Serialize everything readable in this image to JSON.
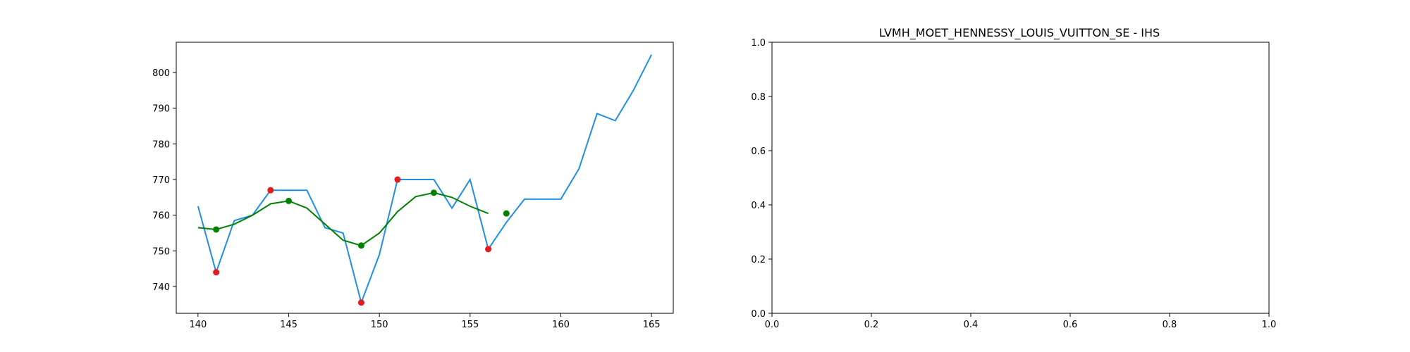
{
  "colors": {
    "price_line": "#1f8fe6",
    "smooth_line": "#008000",
    "red_marker": "#e41a1c",
    "green_marker": "#008000",
    "axis": "#000000"
  },
  "chart_data": [
    {
      "type": "line",
      "title": "",
      "xlabel": "",
      "ylabel": "",
      "xlim": [
        138.8,
        166.2
      ],
      "ylim": [
        732.5,
        808.5
      ],
      "xticks": [
        "140",
        "145",
        "150",
        "155",
        "160",
        "165"
      ],
      "yticks": [
        "740",
        "750",
        "760",
        "770",
        "780",
        "790",
        "800"
      ],
      "grid": false,
      "series": [
        {
          "role": "price",
          "x": [
            140,
            141,
            142,
            143,
            144,
            145,
            146,
            147,
            148,
            149,
            150,
            151,
            152,
            153,
            154,
            155,
            156,
            157,
            158,
            159,
            160,
            161,
            162,
            163,
            164,
            165
          ],
          "y": [
            762.5,
            744.0,
            758.5,
            760.0,
            767.0,
            767.0,
            767.0,
            756.5,
            755.0,
            735.5,
            749.0,
            770.0,
            770.0,
            770.0,
            762.0,
            770.0,
            750.5,
            758.0,
            764.5,
            764.5,
            764.5,
            773.0,
            788.5,
            786.5,
            795.0,
            805.0
          ]
        },
        {
          "role": "smoothed",
          "x": [
            140,
            141,
            142,
            143,
            144,
            145,
            146,
            147,
            148,
            149,
            150,
            151,
            152,
            153,
            154,
            155,
            156
          ],
          "y": [
            756.5,
            756.0,
            757.5,
            760.0,
            763.2,
            764.0,
            762.0,
            757.5,
            753.0,
            751.5,
            755.0,
            761.0,
            765.2,
            766.3,
            765.0,
            762.5,
            760.5
          ]
        },
        {
          "role": "red-points",
          "x": [
            141,
            144,
            149,
            151,
            156
          ],
          "y": [
            744.0,
            767.0,
            735.5,
            770.0,
            750.5
          ]
        },
        {
          "role": "green-points",
          "x": [
            141,
            145,
            149,
            153,
            157
          ],
          "y": [
            756.0,
            764.0,
            751.5,
            766.3,
            760.5
          ]
        }
      ]
    },
    {
      "type": "line",
      "title": "LVMH_MOET_HENNESSY_LOUIS_VUITTON_SE - IHS",
      "xlabel": "",
      "ylabel": "",
      "xlim": [
        0,
        1
      ],
      "ylim": [
        0,
        1
      ],
      "xticks": [
        "0.0",
        "0.2",
        "0.4",
        "0.6",
        "0.8",
        "1.0"
      ],
      "yticks": [
        "0.0",
        "0.2",
        "0.4",
        "0.6",
        "0.8",
        "1.0"
      ],
      "grid": false,
      "series": []
    }
  ]
}
